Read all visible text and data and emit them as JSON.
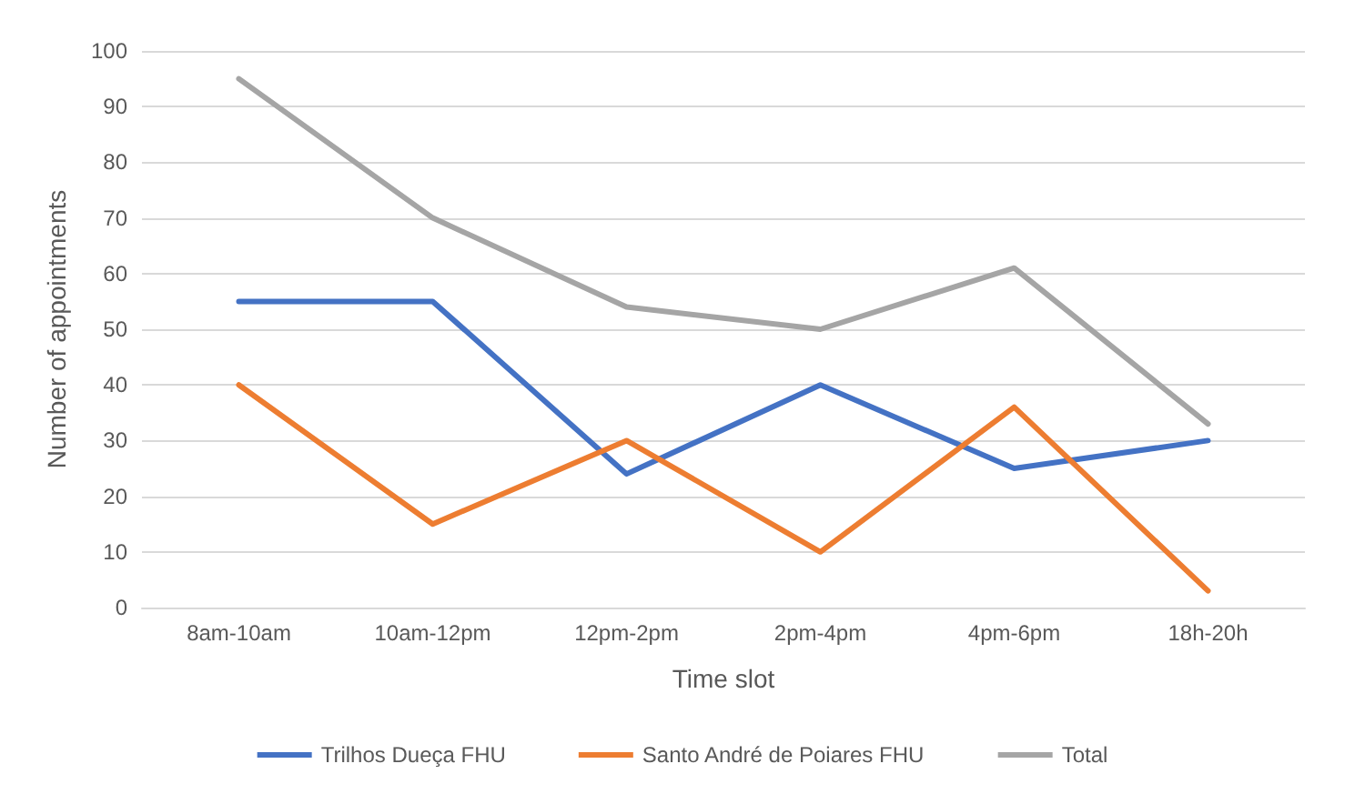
{
  "chart_data": {
    "type": "line",
    "xlabel": "Time slot",
    "ylabel": "Number of appointments",
    "categories": [
      "8am-10am",
      "10am-12pm",
      "12pm-2pm",
      "2pm-4pm",
      "4pm-6pm",
      "18h-20h"
    ],
    "series": [
      {
        "name": "Trilhos Dueça FHU",
        "color": "#4472c4",
        "values": [
          55,
          55,
          24,
          40,
          25,
          30
        ]
      },
      {
        "name": "Santo André de Poiares FHU",
        "color": "#ed7d31",
        "values": [
          40,
          15,
          30,
          10,
          36,
          3
        ]
      },
      {
        "name": "Total",
        "color": "#a5a5a5",
        "values": [
          95,
          70,
          54,
          50,
          61,
          33
        ]
      }
    ],
    "ylim": [
      0,
      100
    ],
    "yticks": [
      0,
      10,
      20,
      30,
      40,
      50,
      60,
      70,
      80,
      90,
      100
    ],
    "grid": "y",
    "legend": "bottom",
    "marker": "none",
    "line_style": "solid"
  }
}
